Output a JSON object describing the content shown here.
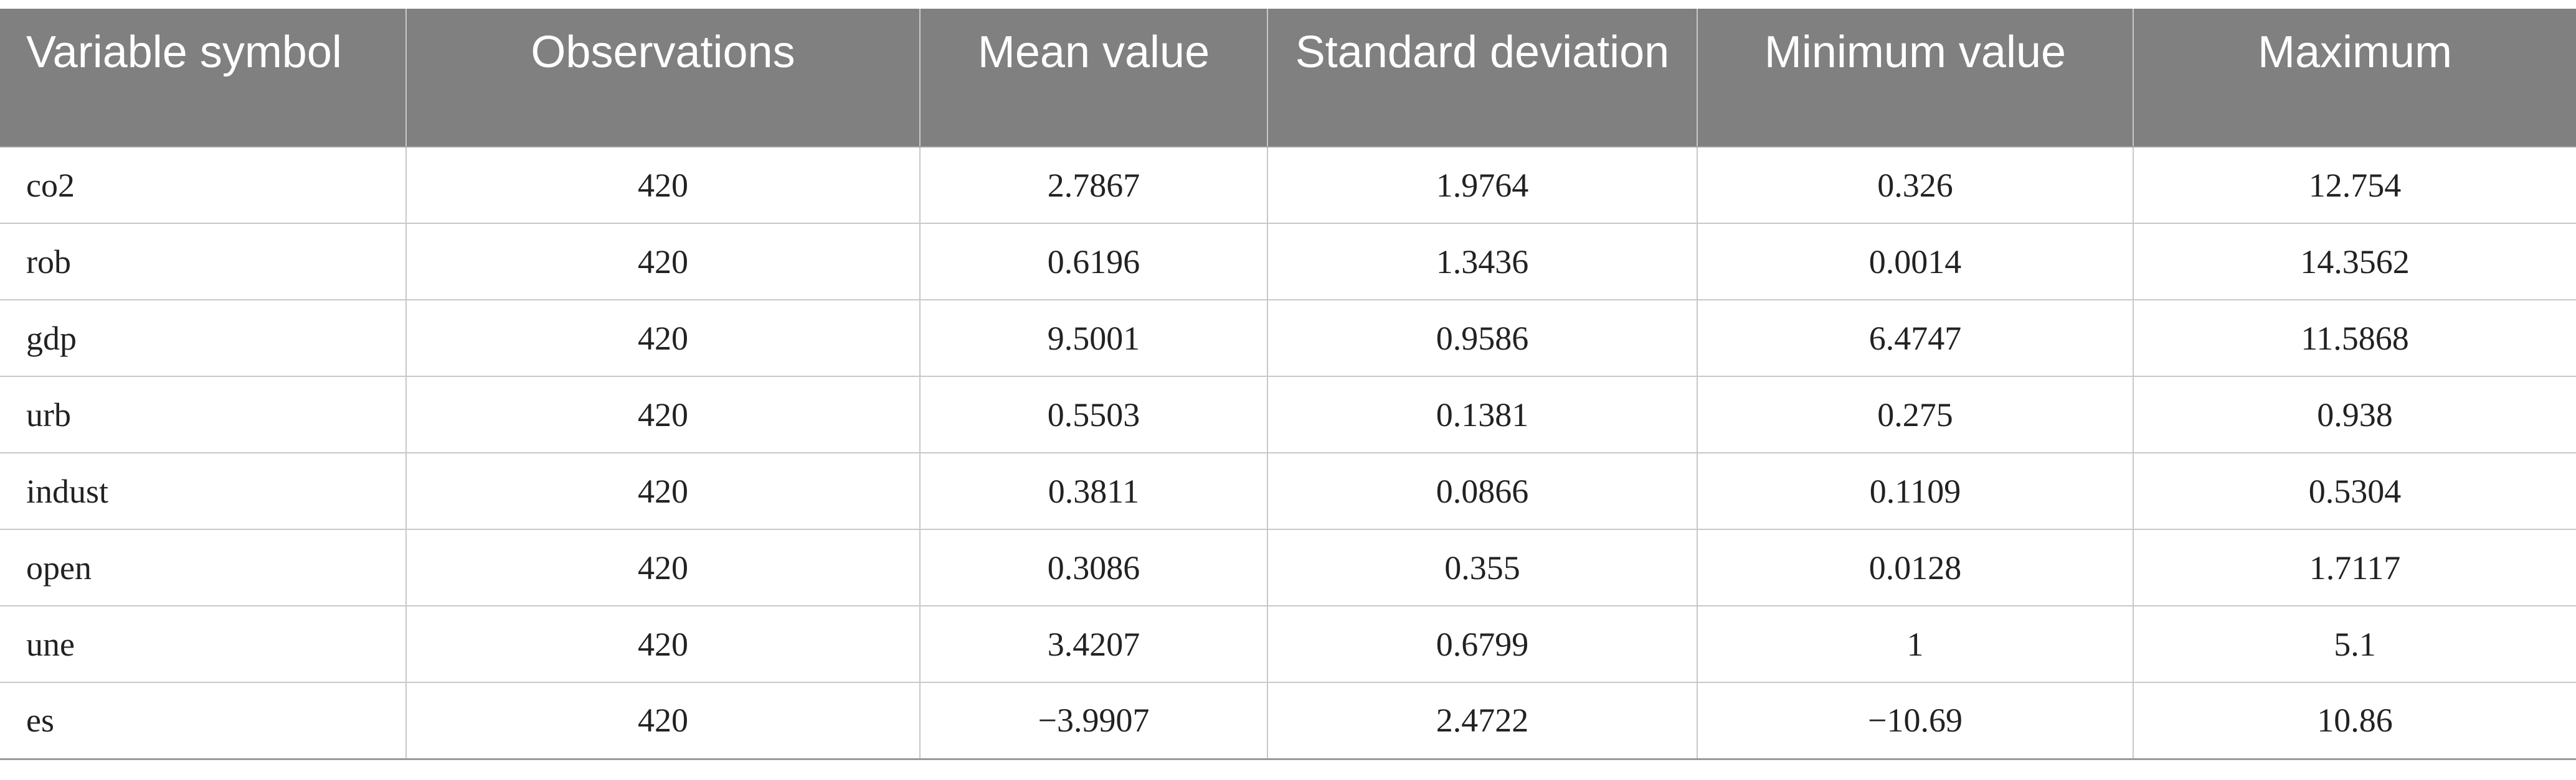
{
  "table": {
    "headers": [
      "Variable symbol",
      "Observations",
      "Mean value",
      "Standard deviation",
      "Minimum value",
      "Maximum"
    ],
    "rows": [
      [
        "co2",
        "420",
        "2.7867",
        "1.9764",
        "0.326",
        "12.754"
      ],
      [
        "rob",
        "420",
        "0.6196",
        "1.3436",
        "0.0014",
        "14.3562"
      ],
      [
        "gdp",
        "420",
        "9.5001",
        "0.9586",
        "6.4747",
        "11.5868"
      ],
      [
        "urb",
        "420",
        "0.5503",
        "0.1381",
        "0.275",
        "0.938"
      ],
      [
        "indust",
        "420",
        "0.3811",
        "0.0866",
        "0.1109",
        "0.5304"
      ],
      [
        "open",
        "420",
        "0.3086",
        "0.355",
        "0.0128",
        "1.7117"
      ],
      [
        "une",
        "420",
        "3.4207",
        "0.6799",
        "1",
        "5.1"
      ],
      [
        "es",
        "420",
        "−3.9907",
        "2.4722",
        "−10.69",
        "10.86"
      ]
    ]
  },
  "colors": {
    "header_background": "#808080",
    "header_text": "#ffffff",
    "grid_line": "#c8c8c8"
  }
}
